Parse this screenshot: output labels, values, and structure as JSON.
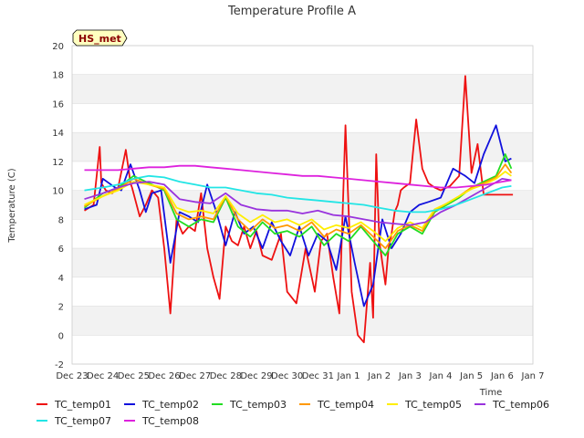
{
  "chart_data": {
    "type": "line",
    "title": "Temperature Profile A",
    "xlabel": "Time",
    "ylabel": "Temperature (C)",
    "badge": "HS_met",
    "ylim": [
      -2,
      20
    ],
    "xlim": [
      0,
      15
    ],
    "yticks": [
      -2,
      0,
      2,
      4,
      6,
      8,
      10,
      12,
      14,
      16,
      18,
      20
    ],
    "xtick_labels": [
      "Dec 23",
      "Dec 24",
      "Dec 25",
      "Dec 26",
      "Dec 27",
      "Dec 28",
      "Dec 29",
      "Dec 30",
      "Dec 31",
      "Jan 1",
      "Jan 2",
      "Jan 3",
      "Jan 4",
      "Jan 5",
      "Jan 6",
      "Jan 7"
    ],
    "grid": "horizontal bands",
    "legend_position": "bottom",
    "series": [
      {
        "name": "TC_temp01",
        "color": "#ee1111",
        "x": [
          0.4,
          0.7,
          0.9,
          0.95,
          1.1,
          1.3,
          1.5,
          1.75,
          1.9,
          1.95,
          2.2,
          2.4,
          2.6,
          2.8,
          3.0,
          3.2,
          3.4,
          3.6,
          3.8,
          4.0,
          4.2,
          4.4,
          4.6,
          4.8,
          5.0,
          5.2,
          5.4,
          5.6,
          5.8,
          6.0,
          6.2,
          6.5,
          6.8,
          7.0,
          7.3,
          7.6,
          7.9,
          8.1,
          8.3,
          8.5,
          8.7,
          8.9,
          9.1,
          9.3,
          9.5,
          9.7,
          9.8,
          9.9,
          10.0,
          10.1,
          10.2,
          10.3,
          10.4,
          10.5,
          10.6,
          10.7,
          10.8,
          11.0,
          11.2,
          11.4,
          11.6,
          11.8,
          12.0,
          12.3,
          12.6,
          12.8,
          13.0,
          13.2,
          13.4,
          13.6,
          13.8,
          13.9,
          14.0,
          14.1,
          14.2,
          14.3,
          14.35
        ],
        "y": [
          8.6,
          9.0,
          13.0,
          10.5,
          10.0,
          9.8,
          10.2,
          12.8,
          10.5,
          10.2,
          8.2,
          9.0,
          10.0,
          9.5,
          6.0,
          1.5,
          8.0,
          7.0,
          7.5,
          7.2,
          9.8,
          6.0,
          4.0,
          2.5,
          7.5,
          6.5,
          6.2,
          7.5,
          6.0,
          7.2,
          5.5,
          5.2,
          7.0,
          3.0,
          2.2,
          6.0,
          3.0,
          6.5,
          7.0,
          4.0,
          1.5,
          14.5,
          3.0,
          0.0,
          -0.5,
          5.0,
          1.2,
          12.5,
          6.5,
          5.0,
          3.5,
          6.0,
          7.0,
          8.5,
          9.0,
          10.0,
          10.2,
          10.5,
          14.9,
          11.5,
          10.5,
          10.2,
          10.0,
          10.3,
          11.0,
          17.9,
          11.2,
          13.2,
          9.7,
          9.7,
          9.7,
          9.7,
          9.7,
          9.7,
          9.7,
          9.7,
          9.7
        ]
      },
      {
        "name": "TC_temp02",
        "color": "#1111dd",
        "x": [
          0.4,
          0.8,
          1.0,
          1.2,
          1.4,
          1.6,
          1.9,
          2.2,
          2.4,
          2.6,
          2.9,
          3.2,
          3.5,
          3.8,
          4.1,
          4.4,
          4.7,
          5.0,
          5.3,
          5.6,
          5.9,
          6.2,
          6.5,
          6.8,
          7.1,
          7.4,
          7.7,
          8.0,
          8.3,
          8.6,
          8.9,
          9.2,
          9.5,
          9.8,
          10.1,
          10.4,
          10.7,
          11.0,
          11.3,
          11.6,
          12.0,
          12.4,
          12.8,
          13.1,
          13.4,
          13.8,
          14.1,
          14.3
        ],
        "y": [
          8.7,
          9.0,
          10.8,
          10.5,
          10.2,
          10.0,
          11.8,
          10.0,
          8.5,
          9.8,
          10.0,
          5.0,
          8.5,
          8.2,
          7.8,
          10.4,
          8.5,
          6.2,
          8.5,
          7.0,
          7.5,
          6.0,
          7.8,
          6.5,
          5.5,
          7.5,
          5.5,
          7.0,
          6.5,
          4.5,
          8.2,
          5.0,
          2.0,
          3.5,
          8.0,
          6.0,
          7.0,
          8.5,
          9.0,
          9.2,
          9.5,
          11.5,
          11.0,
          10.5,
          12.5,
          14.5,
          12.0,
          12.2
        ]
      },
      {
        "name": "TC_temp03",
        "color": "#22dd22",
        "x": [
          0.4,
          1.0,
          1.5,
          2.0,
          2.5,
          3.0,
          3.4,
          3.8,
          4.2,
          4.6,
          5.0,
          5.4,
          5.8,
          6.2,
          6.6,
          7.0,
          7.4,
          7.8,
          8.2,
          8.6,
          9.0,
          9.4,
          9.8,
          10.2,
          10.6,
          11.0,
          11.4,
          11.8,
          12.2,
          12.6,
          13.0,
          13.4,
          13.8,
          14.1,
          14.3
        ],
        "y": [
          8.8,
          9.8,
          10.2,
          11.0,
          10.5,
          10.0,
          8.0,
          7.5,
          8.0,
          7.8,
          9.5,
          7.5,
          6.8,
          7.8,
          7.0,
          7.2,
          6.8,
          7.5,
          6.2,
          7.0,
          6.5,
          7.5,
          6.5,
          5.5,
          7.0,
          7.5,
          7.0,
          8.5,
          9.0,
          9.5,
          10.2,
          10.6,
          11.0,
          12.5,
          11.5
        ]
      },
      {
        "name": "TC_temp04",
        "color": "#ff9900",
        "x": [
          0.4,
          1.0,
          1.5,
          2.0,
          2.5,
          3.0,
          3.4,
          3.8,
          4.2,
          4.6,
          5.0,
          5.4,
          5.8,
          6.2,
          6.6,
          7.0,
          7.4,
          7.8,
          8.2,
          8.6,
          9.0,
          9.4,
          9.8,
          10.2,
          10.6,
          11.0,
          11.4,
          11.8,
          12.2,
          12.6,
          13.0,
          13.4,
          13.8,
          14.1,
          14.3
        ],
        "y": [
          8.9,
          9.6,
          10.1,
          10.8,
          10.4,
          10.1,
          8.4,
          8.0,
          8.2,
          8.0,
          9.6,
          8.0,
          7.2,
          8.0,
          7.4,
          7.6,
          7.2,
          7.8,
          6.8,
          7.3,
          7.0,
          7.6,
          6.8,
          6.0,
          7.2,
          7.6,
          7.2,
          8.6,
          9.1,
          9.6,
          10.2,
          10.5,
          10.9,
          11.8,
          11.2
        ]
      },
      {
        "name": "TC_temp05",
        "color": "#ffee00",
        "x": [
          0.4,
          1.0,
          1.5,
          2.0,
          2.5,
          3.0,
          3.4,
          3.8,
          4.2,
          4.6,
          5.0,
          5.4,
          5.8,
          6.2,
          6.6,
          7.0,
          7.4,
          7.8,
          8.2,
          8.6,
          9.0,
          9.4,
          9.8,
          10.2,
          10.6,
          11.0,
          11.4,
          11.8,
          12.2,
          12.6,
          13.0,
          13.4,
          13.8,
          14.1,
          14.3
        ],
        "y": [
          9.0,
          9.6,
          10.0,
          10.6,
          10.4,
          10.2,
          8.8,
          8.5,
          8.6,
          8.4,
          9.6,
          8.4,
          7.8,
          8.3,
          7.8,
          8.0,
          7.6,
          8.0,
          7.3,
          7.6,
          7.4,
          7.8,
          7.2,
          6.5,
          7.4,
          7.8,
          7.4,
          8.7,
          9.1,
          9.6,
          10.1,
          10.4,
          10.8,
          11.3,
          11.0
        ]
      },
      {
        "name": "TC_temp06",
        "color": "#9933dd",
        "x": [
          0.4,
          1.0,
          1.5,
          2.0,
          2.5,
          3.0,
          3.5,
          4.0,
          4.5,
          5.0,
          5.5,
          6.0,
          6.5,
          7.0,
          7.5,
          8.0,
          8.5,
          9.0,
          9.5,
          10.0,
          10.5,
          11.0,
          11.5,
          12.0,
          12.5,
          13.0,
          13.5,
          14.0,
          14.3
        ],
        "y": [
          9.4,
          9.8,
          10.2,
          10.5,
          10.6,
          10.4,
          9.4,
          9.2,
          9.1,
          9.8,
          9.0,
          8.7,
          8.6,
          8.6,
          8.4,
          8.6,
          8.3,
          8.2,
          8.0,
          7.8,
          7.7,
          7.6,
          7.8,
          8.5,
          9.0,
          9.6,
          10.2,
          10.8,
          10.7
        ]
      },
      {
        "name": "TC_temp07",
        "color": "#22e5e5",
        "x": [
          0.4,
          1.0,
          1.5,
          2.0,
          2.5,
          3.0,
          3.5,
          4.0,
          4.5,
          5.0,
          5.5,
          6.0,
          6.5,
          7.0,
          7.5,
          8.0,
          8.5,
          9.0,
          9.5,
          10.0,
          10.5,
          11.0,
          11.5,
          12.0,
          12.5,
          13.0,
          13.5,
          14.0,
          14.3
        ],
        "y": [
          10.0,
          10.2,
          10.4,
          10.8,
          11.0,
          10.9,
          10.6,
          10.4,
          10.2,
          10.2,
          10.0,
          9.8,
          9.7,
          9.5,
          9.4,
          9.3,
          9.2,
          9.1,
          9.0,
          8.8,
          8.6,
          8.5,
          8.5,
          8.7,
          9.0,
          9.4,
          9.8,
          10.2,
          10.3
        ]
      },
      {
        "name": "TC_temp08",
        "color": "#dd22dd",
        "x": [
          0.4,
          1.0,
          1.5,
          2.0,
          2.5,
          3.0,
          3.5,
          4.0,
          4.5,
          5.0,
          5.5,
          6.0,
          6.5,
          7.0,
          7.5,
          8.0,
          8.5,
          9.0,
          9.5,
          10.0,
          10.5,
          11.0,
          11.5,
          12.0,
          12.5,
          13.0,
          13.5,
          14.0,
          14.3
        ],
        "y": [
          11.4,
          11.4,
          11.4,
          11.5,
          11.6,
          11.6,
          11.7,
          11.7,
          11.6,
          11.5,
          11.4,
          11.3,
          11.2,
          11.1,
          11.0,
          11.0,
          10.9,
          10.8,
          10.7,
          10.6,
          10.5,
          10.4,
          10.3,
          10.2,
          10.2,
          10.3,
          10.4,
          10.6,
          10.7
        ]
      }
    ]
  }
}
